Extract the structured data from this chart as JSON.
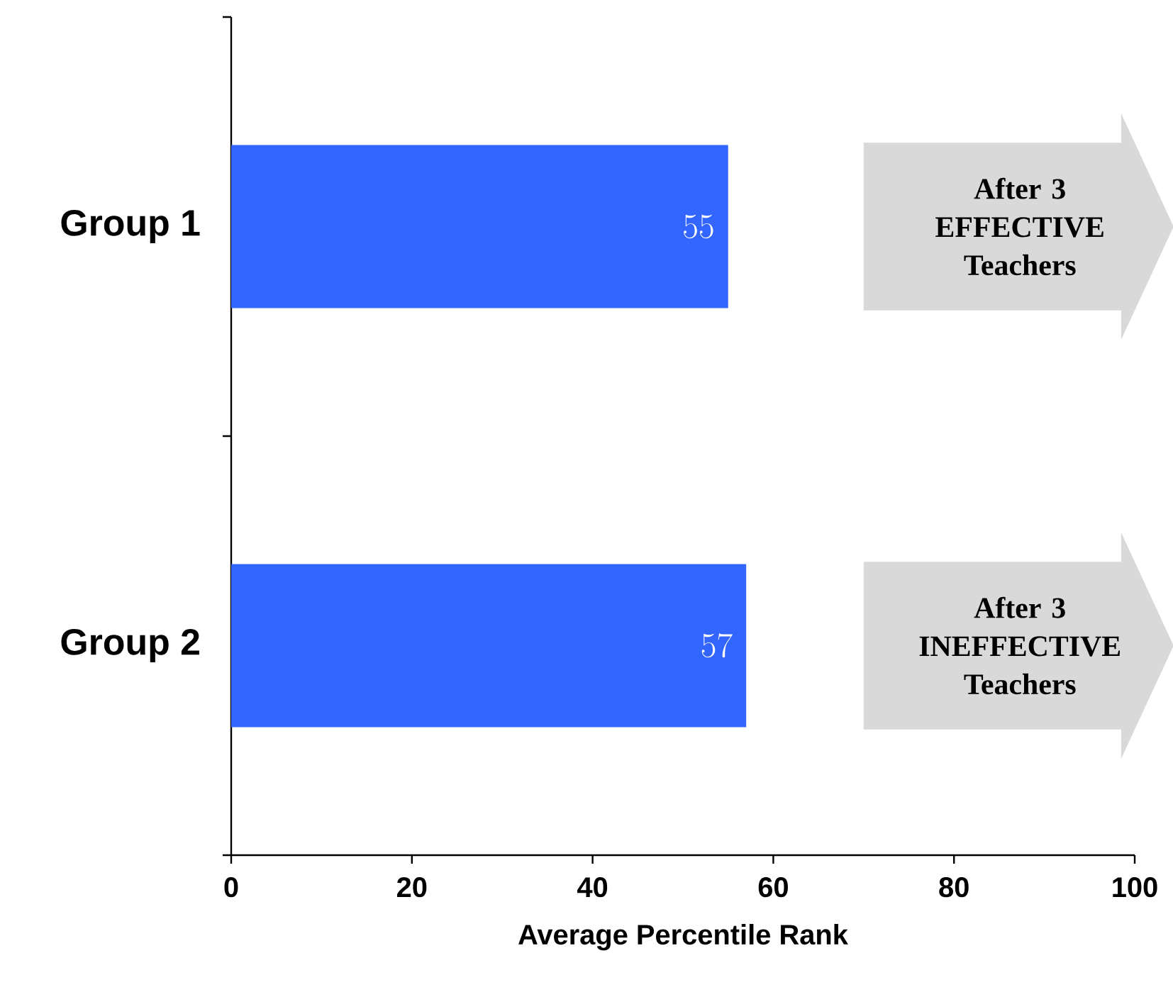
{
  "chart_data": {
    "type": "bar",
    "orientation": "horizontal",
    "categories": [
      "Group 1",
      "Group 2"
    ],
    "values": [
      55,
      57
    ],
    "color": "#3366ff",
    "xlabel": "Average Percentile Rank",
    "xlim": [
      0,
      100
    ],
    "xticks": [
      0,
      20,
      40,
      60,
      80,
      100
    ],
    "data_labels": true,
    "annotations": [
      "After 3 EFFECTIVE Teachers",
      "After 3 INEFFECTIVE Teachers"
    ]
  }
}
